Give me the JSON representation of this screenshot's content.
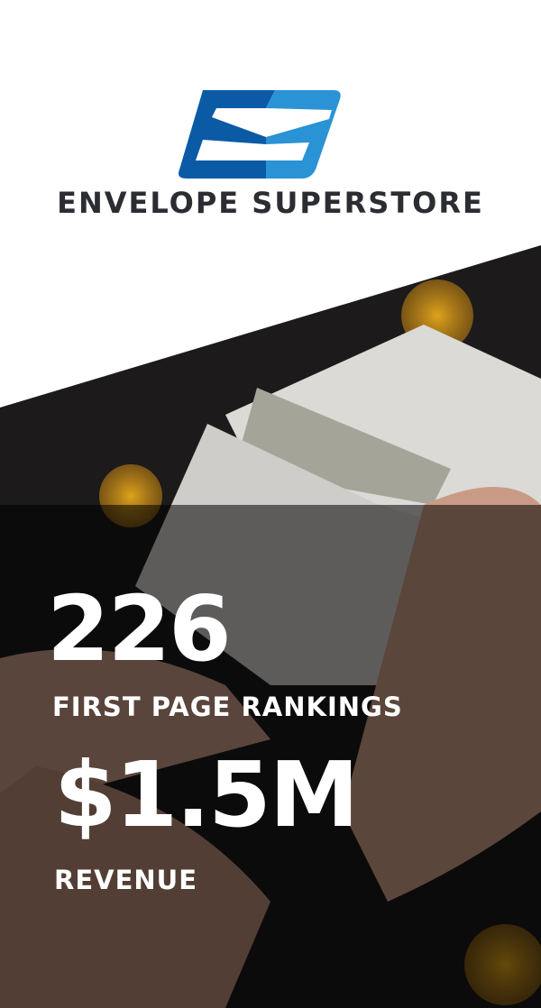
{
  "brand": {
    "name": "ENVELOPE SUPERSTORE",
    "logo_colors": [
      "#0b5aa6",
      "#2a93d5"
    ]
  },
  "stats": [
    {
      "value": "226",
      "label": "FIRST PAGE RANKINGS"
    },
    {
      "value": "$1.5M",
      "label": "REVENUE"
    }
  ]
}
